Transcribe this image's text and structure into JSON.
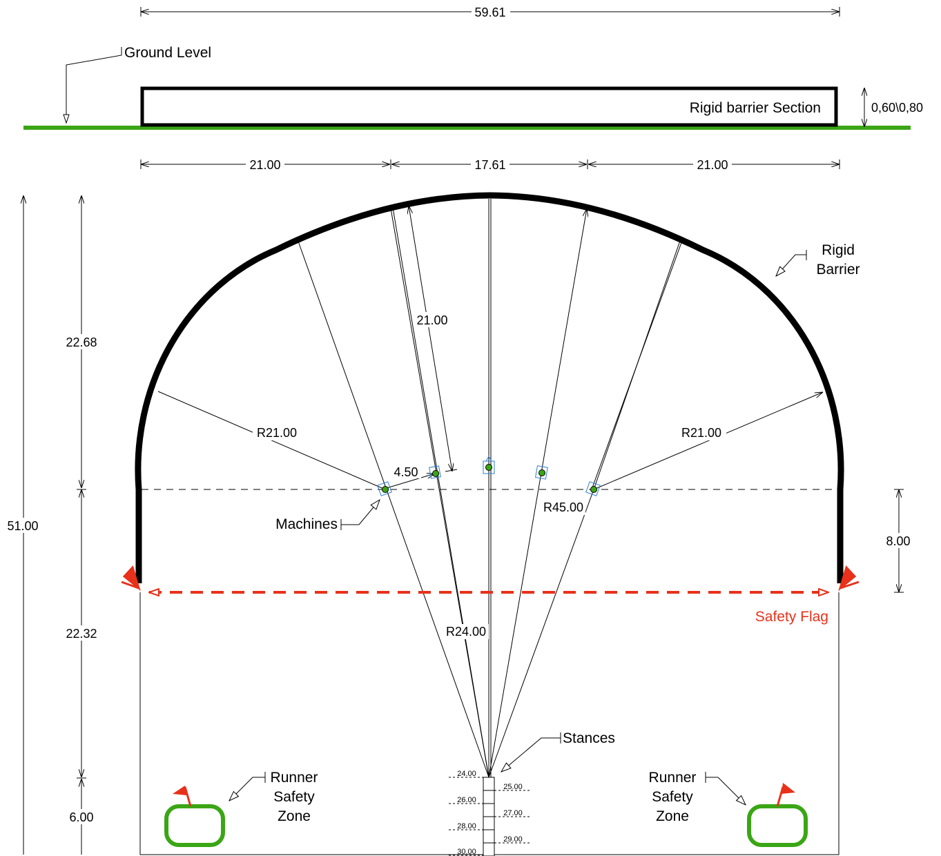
{
  "section": {
    "overall_width": "59.61",
    "ground_label": "Ground Level",
    "barrier_section_label": "Rigid barrier Section",
    "barrier_height": "0,60\\0,80",
    "ground_color": "#3aa615"
  },
  "plan": {
    "top_dims": [
      "21.00",
      "17.61",
      "21.00"
    ],
    "left_dims": {
      "total": "51.00",
      "upper": "22.68",
      "middle": "22.32",
      "lower": "6.00"
    },
    "right_dim": "8.00",
    "radius_left": "R21.00",
    "radius_right": "R21.00",
    "radius_center": "R24.00",
    "radius_outer": "R45.00",
    "radial_dim": "21.00",
    "machine_spacing": "4.50",
    "labels": {
      "rigid_barrier": [
        "Rigid",
        "Barrier"
      ],
      "machines": "Machines",
      "safety_flag": "Safety Flag",
      "stances": "Stances",
      "runner_zone": [
        "Runner",
        "Safety",
        "Zone"
      ]
    },
    "stance_marks_left": [
      "24.00",
      "26.00",
      "28.00",
      "30.00"
    ],
    "stance_marks_right": [
      "25.00",
      "27.00",
      "29.00"
    ],
    "colors": {
      "flag": "#e8311a",
      "zone": "#3aa615",
      "machine": "#3aa615",
      "machine_marker": "#2a7fd4"
    }
  }
}
